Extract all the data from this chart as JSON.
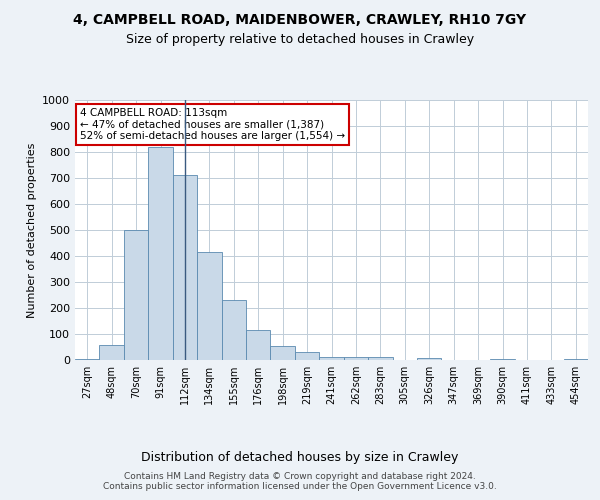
{
  "title1": "4, CAMPBELL ROAD, MAIDENBOWER, CRAWLEY, RH10 7GY",
  "title2": "Size of property relative to detached houses in Crawley",
  "xlabel": "Distribution of detached houses by size in Crawley",
  "ylabel": "Number of detached properties",
  "categories": [
    "27sqm",
    "48sqm",
    "70sqm",
    "91sqm",
    "112sqm",
    "134sqm",
    "155sqm",
    "176sqm",
    "198sqm",
    "219sqm",
    "241sqm",
    "262sqm",
    "283sqm",
    "305sqm",
    "326sqm",
    "347sqm",
    "369sqm",
    "390sqm",
    "411sqm",
    "433sqm",
    "454sqm"
  ],
  "values": [
    5,
    57,
    500,
    820,
    710,
    415,
    230,
    115,
    55,
    30,
    13,
    10,
    12,
    0,
    8,
    0,
    0,
    5,
    0,
    0,
    5
  ],
  "bar_color": "#c9d9e8",
  "bar_edge_color": "#5a8ab0",
  "highlight_index": 4,
  "highlight_line_color": "#3a5a80",
  "annotation_text": "4 CAMPBELL ROAD: 113sqm\n← 47% of detached houses are smaller (1,387)\n52% of semi-detached houses are larger (1,554) →",
  "annotation_box_color": "#ffffff",
  "annotation_box_edge": "#cc0000",
  "footer1": "Contains HM Land Registry data © Crown copyright and database right 2024.",
  "footer2": "Contains public sector information licensed under the Open Government Licence v3.0.",
  "ylim": [
    0,
    1000
  ],
  "yticks": [
    0,
    100,
    200,
    300,
    400,
    500,
    600,
    700,
    800,
    900,
    1000
  ],
  "background_color": "#edf2f7",
  "plot_bg_color": "#ffffff",
  "grid_color": "#c0cdd8"
}
